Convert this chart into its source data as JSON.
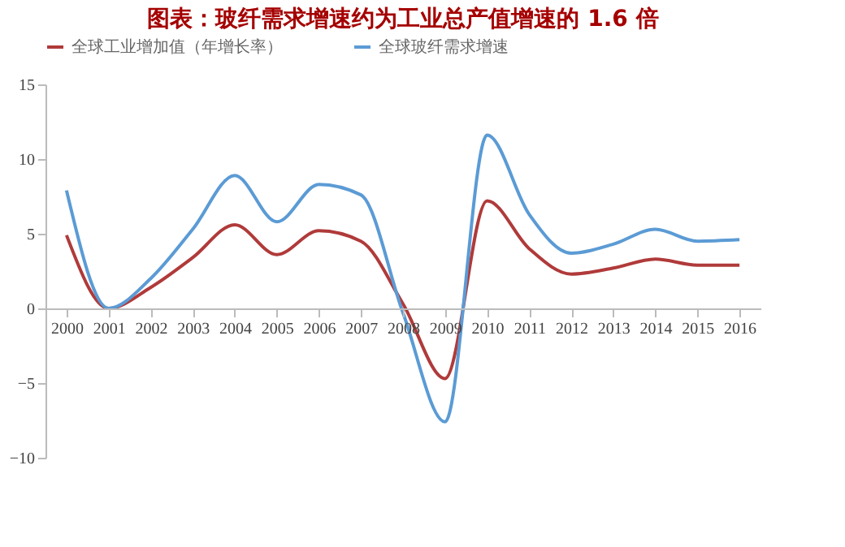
{
  "chart_data": {
    "type": "line",
    "title": "图表：玻纤需求增速约为工业总产值增速的 1.6 倍",
    "categories": [
      "2000",
      "2001",
      "2002",
      "2003",
      "2004",
      "2005",
      "2006",
      "2007",
      "2008",
      "2009",
      "2010",
      "2011",
      "2012",
      "2013",
      "2014",
      "2015",
      "2016"
    ],
    "series": [
      {
        "name": "全球工业增加值（年增长率）",
        "color": "#b03a3a",
        "values": [
          4.9,
          0,
          1.4,
          3.4,
          5.6,
          3.6,
          5.2,
          4.5,
          0.3,
          -4.7,
          7.2,
          4.0,
          2.3,
          2.7,
          3.3,
          2.9,
          2.9
        ]
      },
      {
        "name": "全球玻纤需求增速",
        "color": "#5b9bd5",
        "values": [
          7.9,
          0,
          2.0,
          5.3,
          8.9,
          5.8,
          8.3,
          7.6,
          -0.3,
          -7.6,
          11.6,
          6.3,
          3.7,
          4.3,
          5.3,
          4.5,
          4.6
        ]
      }
    ],
    "ylim": [
      -10,
      15
    ],
    "yticks": [
      -10,
      -5,
      0,
      5,
      10,
      15
    ],
    "grid": false,
    "legend": "top",
    "marker": "none",
    "line_style": "solid"
  }
}
